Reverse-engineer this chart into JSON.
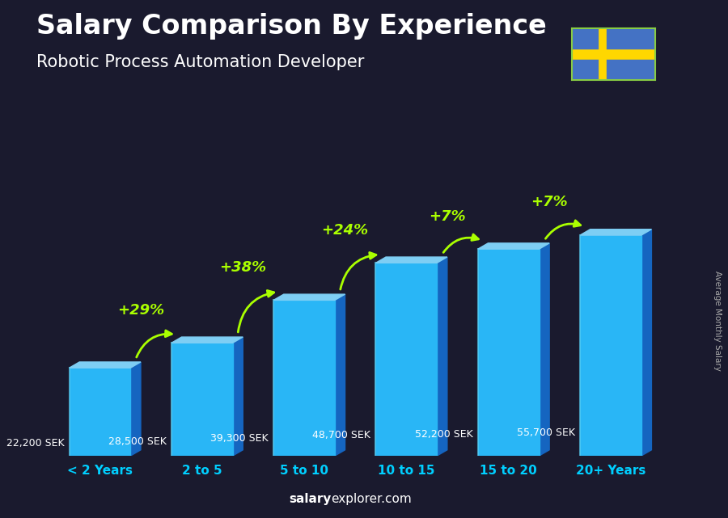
{
  "title": "Salary Comparison By Experience",
  "subtitle": "Robotic Process Automation Developer",
  "categories": [
    "< 2 Years",
    "2 to 5",
    "5 to 10",
    "10 to 15",
    "15 to 20",
    "20+ Years"
  ],
  "values": [
    22200,
    28500,
    39300,
    48700,
    52200,
    55700
  ],
  "value_labels": [
    "22,200 SEK",
    "28,500 SEK",
    "39,300 SEK",
    "48,700 SEK",
    "52,200 SEK",
    "55,700 SEK"
  ],
  "pct_changes": [
    "+29%",
    "+38%",
    "+24%",
    "+7%",
    "+7%"
  ],
  "bar_face_color": "#29b6f6",
  "bar_top_color": "#7ecef4",
  "bar_side_color": "#1565c0",
  "bg_color": "#1a1a2e",
  "title_color": "#ffffff",
  "subtitle_color": "#ffffff",
  "category_color": "#00cfff",
  "value_label_color": "#ffffff",
  "pct_color": "#aaff00",
  "arrow_color": "#aaff00",
  "ylabel_text": "Average Monthly Salary",
  "footer_salary": "salary",
  "footer_explorer": "explorer",
  "footer_domain": ".com",
  "ylim_max": 68000,
  "bar_width": 0.6,
  "flag_blue": "#4472c4",
  "flag_yellow": "#FFD700"
}
